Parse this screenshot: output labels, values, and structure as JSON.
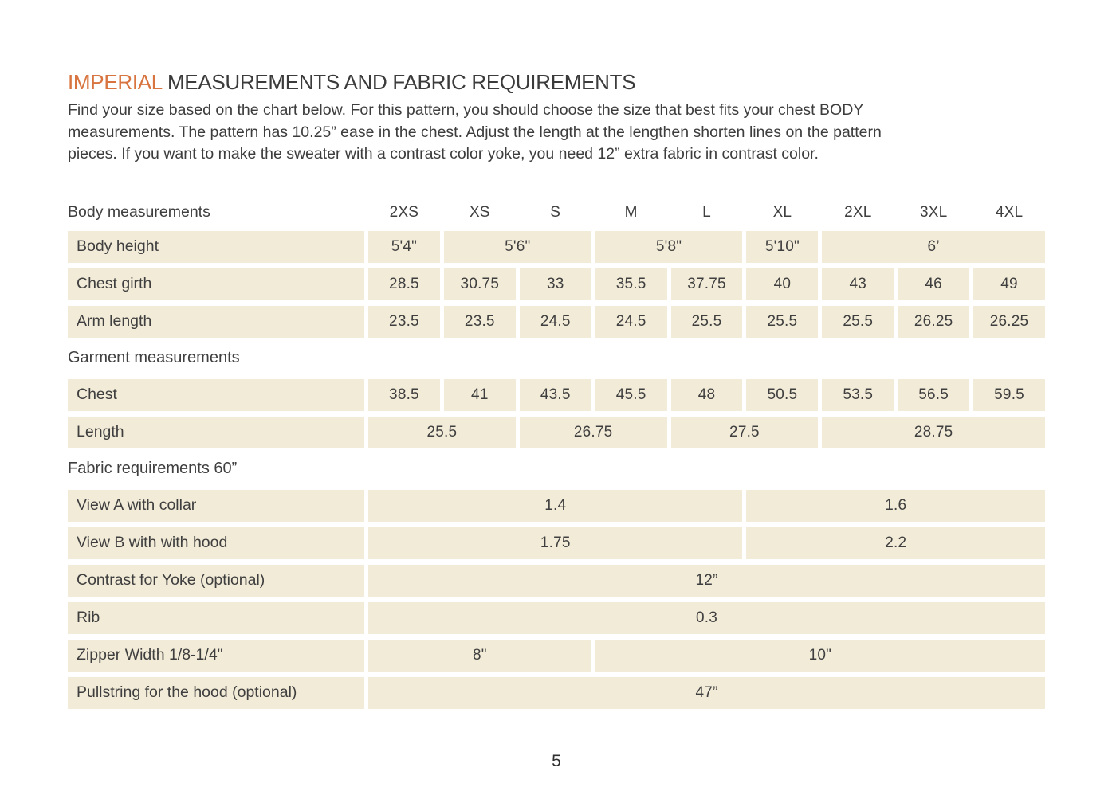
{
  "colors": {
    "accent": "#d8743f",
    "cell_bg": "#f2ebd8",
    "text": "#3d3d3d"
  },
  "header": {
    "title_accent": "IMPERIAL",
    "title_rest": "MEASUREMENTS AND FABRIC REQUIREMENTS",
    "intro_lines": [
      "Find your size based on the chart below. For this pattern, you should choose the size that best fits your chest BODY",
      "measurements. The pattern has 10.25” ease in the chest.  Adjust the length at the lengthen shorten lines on the pattern",
      "pieces. If you want to make the sweater with a contrast color yoke, you need 12” extra fabric in contrast color."
    ]
  },
  "table": {
    "size_labels": [
      "2XS",
      "XS",
      "S",
      "M",
      "L",
      "XL",
      "2XL",
      "3XL",
      "4XL"
    ],
    "rows": [
      {
        "type": "header",
        "label": "Body measurements",
        "cells": [
          {
            "text": "2XS",
            "span": 1
          },
          {
            "text": "XS",
            "span": 1
          },
          {
            "text": "S",
            "span": 1
          },
          {
            "text": "M",
            "span": 1
          },
          {
            "text": "L",
            "span": 1
          },
          {
            "text": "XL",
            "span": 1
          },
          {
            "text": "2XL",
            "span": 1
          },
          {
            "text": "3XL",
            "span": 1
          },
          {
            "text": "4XL",
            "span": 1
          }
        ]
      },
      {
        "type": "data",
        "label": "Body height",
        "cells": [
          {
            "text": "5'4\"",
            "span": 1
          },
          {
            "text": "5'6\"",
            "span": 2
          },
          {
            "text": "5'8\"",
            "span": 2
          },
          {
            "text": "5'10\"",
            "span": 1
          },
          {
            "text": "6’",
            "span": 3
          }
        ]
      },
      {
        "type": "data",
        "label": "Chest girth",
        "cells": [
          {
            "text": "28.5",
            "span": 1
          },
          {
            "text": "30.75",
            "span": 1
          },
          {
            "text": "33",
            "span": 1
          },
          {
            "text": "35.5",
            "span": 1
          },
          {
            "text": "37.75",
            "span": 1
          },
          {
            "text": "40",
            "span": 1
          },
          {
            "text": "43",
            "span": 1
          },
          {
            "text": "46",
            "span": 1
          },
          {
            "text": "49",
            "span": 1
          }
        ]
      },
      {
        "type": "data",
        "label": "Arm length",
        "cells": [
          {
            "text": "23.5",
            "span": 1
          },
          {
            "text": "23.5",
            "span": 1
          },
          {
            "text": "24.5",
            "span": 1
          },
          {
            "text": "24.5",
            "span": 1
          },
          {
            "text": "25.5",
            "span": 1
          },
          {
            "text": "25.5",
            "span": 1
          },
          {
            "text": "25.5",
            "span": 1
          },
          {
            "text": "26.25",
            "span": 1
          },
          {
            "text": "26.25",
            "span": 1
          }
        ]
      },
      {
        "type": "section",
        "label": "Garment measurements",
        "cells": []
      },
      {
        "type": "data",
        "label": "Chest",
        "cells": [
          {
            "text": "38.5",
            "span": 1
          },
          {
            "text": "41",
            "span": 1
          },
          {
            "text": "43.5",
            "span": 1
          },
          {
            "text": "45.5",
            "span": 1
          },
          {
            "text": "48",
            "span": 1
          },
          {
            "text": "50.5",
            "span": 1
          },
          {
            "text": "53.5",
            "span": 1
          },
          {
            "text": "56.5",
            "span": 1
          },
          {
            "text": "59.5",
            "span": 1
          }
        ]
      },
      {
        "type": "data",
        "label": "Length",
        "cells": [
          {
            "text": "25.5",
            "span": 2
          },
          {
            "text": "26.75",
            "span": 2
          },
          {
            "text": "27.5",
            "span": 2
          },
          {
            "text": "28.75",
            "span": 3
          }
        ]
      },
      {
        "type": "section",
        "label": "Fabric requirements 60”",
        "cells": []
      },
      {
        "type": "data",
        "label": "View A with collar",
        "cells": [
          {
            "text": "1.4",
            "span": 5
          },
          {
            "text": "1.6",
            "span": 4
          }
        ]
      },
      {
        "type": "data",
        "label": "View B with with hood",
        "cells": [
          {
            "text": "1.75",
            "span": 5
          },
          {
            "text": "2.2",
            "span": 4
          }
        ]
      },
      {
        "type": "data",
        "label": "Contrast for Yoke (optional)",
        "cells": [
          {
            "text": "12”",
            "span": 9
          }
        ]
      },
      {
        "type": "data",
        "label": "Rib",
        "cells": [
          {
            "text": "0.3",
            "span": 9
          }
        ]
      },
      {
        "type": "data",
        "label": "Zipper Width 1/8-1/4\"",
        "cells": [
          {
            "text": "8\"",
            "span": 3
          },
          {
            "text": "10\"",
            "span": 6
          }
        ]
      },
      {
        "type": "data",
        "label": "Pullstring for the hood (optional)",
        "cells": [
          {
            "text": "47”",
            "span": 9
          }
        ]
      }
    ]
  },
  "footer": {
    "page_number": "5"
  }
}
